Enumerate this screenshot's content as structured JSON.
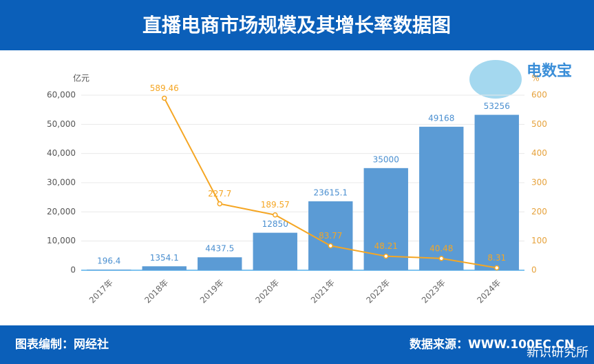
{
  "chart_data": {
    "type": "bar",
    "title": "直播电商市场规模及其增长率数据图",
    "y_label": "亿元",
    "y2_label": "%",
    "logo": "电数宝",
    "credit": "图表编制：网经社",
    "source": "数据来源：WWW.100EC.CN",
    "watermark": "新识研究所",
    "categories": [
      "2017年",
      "2018年",
      "2019年",
      "2020年",
      "2021年",
      "2022年",
      "2023年",
      "2024年"
    ],
    "series": [
      {
        "type": "bar",
        "color": "#5b9bd5",
        "values": [
          196.4,
          1354.1,
          4437.5,
          12850,
          23615.1,
          35000,
          49168,
          53256
        ]
      },
      {
        "type": "line",
        "axis": "y2",
        "color": "#f5a623",
        "values": [
          null,
          589.46,
          227.7,
          189.57,
          83.77,
          48.21,
          40.48,
          8.31
        ]
      }
    ],
    "ylim": [
      0,
      60000
    ],
    "yticks": [
      0,
      {
        "value": 10000,
        "label": "10,000"
      },
      {
        "value": 20000,
        "label": "20,000"
      },
      {
        "value": 30000,
        "label": "30,000"
      },
      {
        "value": 40000,
        "label": "40,000"
      },
      {
        "value": 50000,
        "label": "50,000"
      },
      {
        "value": 60000,
        "label": "60,000"
      }
    ],
    "y2lim": [
      0,
      600
    ],
    "y2ticks": [
      0,
      100,
      200,
      300,
      400,
      500,
      600
    ],
    "grid": true
  }
}
